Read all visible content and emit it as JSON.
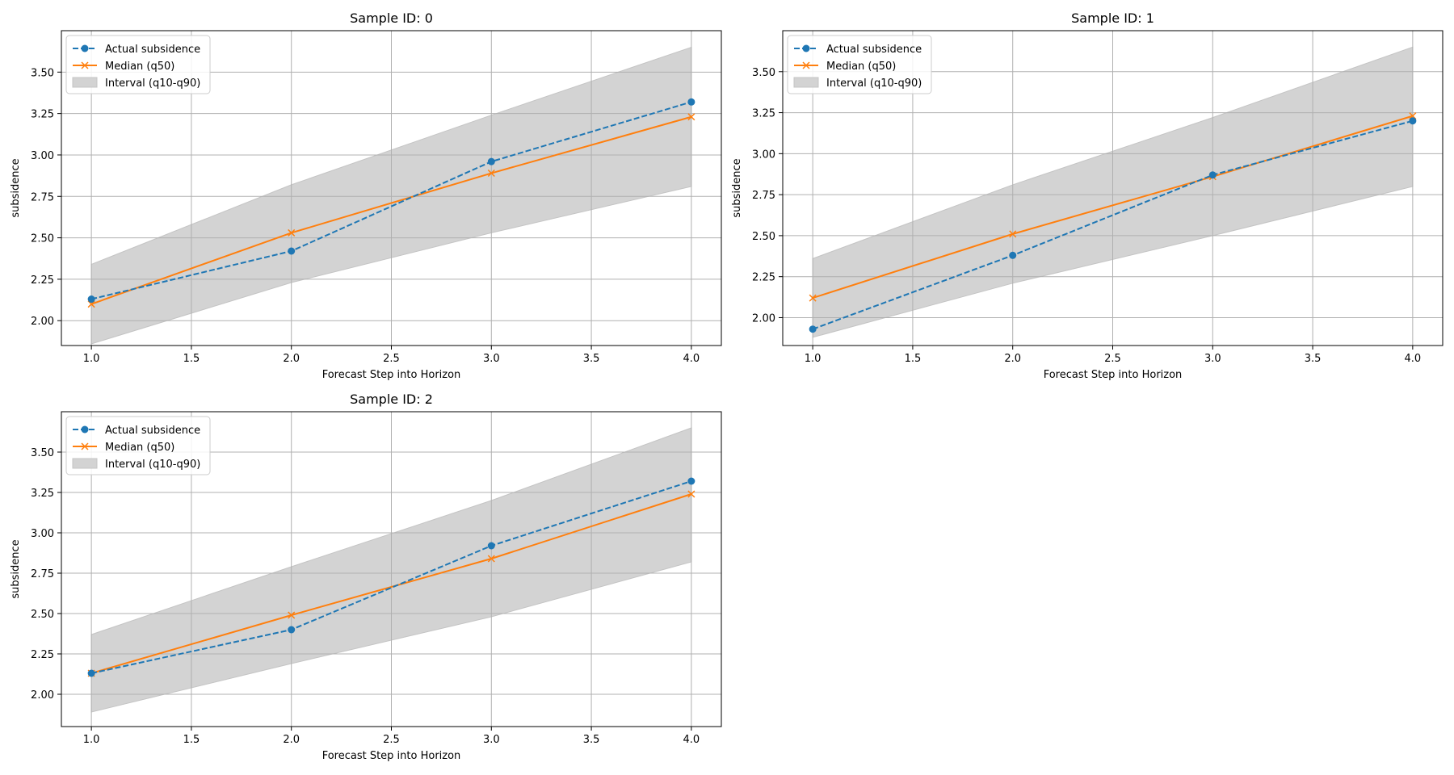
{
  "chart_data": [
    {
      "type": "line",
      "title": "Sample ID: 0",
      "xlabel": "Forecast Step into Horizon",
      "ylabel": "subsidence",
      "xlim": [
        0.85,
        4.15
      ],
      "ylim": [
        1.85,
        3.75
      ],
      "xticks": [
        1.0,
        1.5,
        2.0,
        2.5,
        3.0,
        3.5,
        4.0
      ],
      "xtick_labels": [
        "1.0",
        "1.5",
        "2.0",
        "2.5",
        "3.0",
        "3.5",
        "4.0"
      ],
      "yticks": [
        2.0,
        2.25,
        2.5,
        2.75,
        3.0,
        3.25,
        3.5
      ],
      "ytick_labels": [
        "2.00",
        "2.25",
        "2.50",
        "2.75",
        "3.00",
        "3.25",
        "3.50"
      ],
      "grid": true,
      "legend_position": "upper-left",
      "x": [
        1,
        2,
        3,
        4
      ],
      "series": [
        {
          "name": "Actual subsidence",
          "style": "dashed-marker-circle",
          "color": "#1f77b4",
          "values": [
            2.13,
            2.42,
            2.96,
            3.32
          ]
        },
        {
          "name": "Median (q50)",
          "style": "solid-marker-x",
          "color": "#ff7f0e",
          "values": [
            2.1,
            2.53,
            2.89,
            3.23
          ]
        }
      ],
      "band": {
        "name": "Interval (q10-q90)",
        "color": "#d3d3d3",
        "lower": [
          1.86,
          2.23,
          2.53,
          2.81
        ],
        "upper": [
          2.34,
          2.82,
          3.24,
          3.65
        ]
      }
    },
    {
      "type": "line",
      "title": "Sample ID: 1",
      "xlabel": "Forecast Step into Horizon",
      "ylabel": "subsidence",
      "xlim": [
        0.85,
        4.15
      ],
      "ylim": [
        1.83,
        3.75
      ],
      "xticks": [
        1.0,
        1.5,
        2.0,
        2.5,
        3.0,
        3.5,
        4.0
      ],
      "xtick_labels": [
        "1.0",
        "1.5",
        "2.0",
        "2.5",
        "3.0",
        "3.5",
        "4.0"
      ],
      "yticks": [
        2.0,
        2.25,
        2.5,
        2.75,
        3.0,
        3.25,
        3.5
      ],
      "ytick_labels": [
        "2.00",
        "2.25",
        "2.50",
        "2.75",
        "3.00",
        "3.25",
        "3.50"
      ],
      "grid": true,
      "legend_position": "upper-left",
      "x": [
        1,
        2,
        3,
        4
      ],
      "series": [
        {
          "name": "Actual subsidence",
          "style": "dashed-marker-circle",
          "color": "#1f77b4",
          "values": [
            1.93,
            2.38,
            2.87,
            3.2
          ]
        },
        {
          "name": "Median (q50)",
          "style": "solid-marker-x",
          "color": "#ff7f0e",
          "values": [
            2.12,
            2.51,
            2.86,
            3.23
          ]
        }
      ],
      "band": {
        "name": "Interval (q10-q90)",
        "color": "#d3d3d3",
        "lower": [
          1.88,
          2.21,
          2.5,
          2.8
        ],
        "upper": [
          2.36,
          2.81,
          3.22,
          3.65
        ]
      }
    },
    {
      "type": "line",
      "title": "Sample ID: 2",
      "xlabel": "Forecast Step into Horizon",
      "ylabel": "subsidence",
      "xlim": [
        0.85,
        4.15
      ],
      "ylim": [
        1.8,
        3.75
      ],
      "xticks": [
        1.0,
        1.5,
        2.0,
        2.5,
        3.0,
        3.5,
        4.0
      ],
      "xtick_labels": [
        "1.0",
        "1.5",
        "2.0",
        "2.5",
        "3.0",
        "3.5",
        "4.0"
      ],
      "yticks": [
        2.0,
        2.25,
        2.5,
        2.75,
        3.0,
        3.25,
        3.5
      ],
      "ytick_labels": [
        "2.00",
        "2.25",
        "2.50",
        "2.75",
        "3.00",
        "3.25",
        "3.50"
      ],
      "grid": true,
      "legend_position": "upper-left",
      "x": [
        1,
        2,
        3,
        4
      ],
      "series": [
        {
          "name": "Actual subsidence",
          "style": "dashed-marker-circle",
          "color": "#1f77b4",
          "values": [
            2.13,
            2.4,
            2.92,
            3.32
          ]
        },
        {
          "name": "Median (q50)",
          "style": "solid-marker-x",
          "color": "#ff7f0e",
          "values": [
            2.13,
            2.49,
            2.84,
            3.24
          ]
        }
      ],
      "band": {
        "name": "Interval (q10-q90)",
        "color": "#d3d3d3",
        "lower": [
          1.89,
          2.19,
          2.48,
          2.82
        ],
        "upper": [
          2.37,
          2.79,
          3.2,
          3.65
        ]
      }
    }
  ]
}
